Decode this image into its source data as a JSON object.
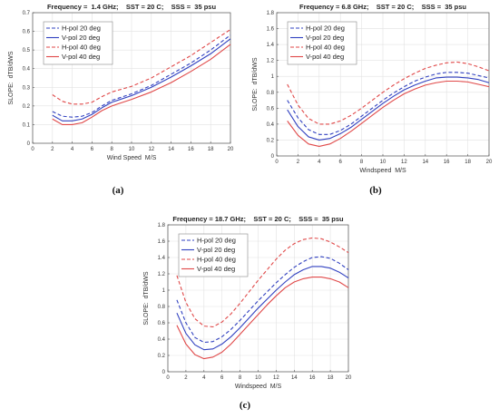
{
  "chart_data": [
    {
      "type": "line",
      "title": "Frequency =  1.4 GHz;    SST = 20 C;    SSS =  35 psu",
      "xlabel": "Wind Speed  M/S",
      "ylabel": "SLOPE:  dTB/dWS",
      "caption": "(a)",
      "xlim": [
        0,
        20
      ],
      "ylim": [
        0,
        0.7
      ],
      "xticks": [
        "0",
        "2",
        "4",
        "6",
        "8",
        "10",
        "12",
        "14",
        "16",
        "18",
        "20"
      ],
      "yticks": [
        "0",
        "0.1",
        "0.2",
        "0.3",
        "0.4",
        "0.5",
        "0.6",
        "0.7"
      ],
      "grid": true,
      "legend": "top-left",
      "x": [
        2,
        3,
        4,
        5,
        6,
        7,
        8,
        10,
        12,
        14,
        16,
        18,
        20
      ],
      "series": [
        {
          "name": "H-pol 20 deg",
          "color": "#3040c0",
          "dashed": true,
          "values": [
            0.17,
            0.145,
            0.14,
            0.145,
            0.165,
            0.2,
            0.23,
            0.265,
            0.31,
            0.37,
            0.43,
            0.5,
            0.58
          ]
        },
        {
          "name": "V-pol 20 deg",
          "color": "#3040c0",
          "dashed": false,
          "values": [
            0.15,
            0.12,
            0.12,
            0.13,
            0.155,
            0.19,
            0.22,
            0.255,
            0.3,
            0.355,
            0.415,
            0.48,
            0.56
          ]
        },
        {
          "name": "H-pol 40 deg",
          "color": "#e04848",
          "dashed": true,
          "values": [
            0.26,
            0.225,
            0.21,
            0.21,
            0.22,
            0.25,
            0.275,
            0.305,
            0.35,
            0.41,
            0.47,
            0.54,
            0.61
          ]
        },
        {
          "name": "V-pol 40 deg",
          "color": "#e04848",
          "dashed": false,
          "values": [
            0.13,
            0.1,
            0.1,
            0.11,
            0.14,
            0.175,
            0.2,
            0.235,
            0.275,
            0.325,
            0.385,
            0.45,
            0.53
          ]
        }
      ]
    },
    {
      "type": "line",
      "title": "Frequency = 6.8 GHz;    SST = 20 C;    SSS =  35 psu",
      "xlabel": "Windspeed  M/S",
      "ylabel": "SLOPE:  dTB/dWS",
      "caption": "(b)",
      "xlim": [
        0,
        20
      ],
      "ylim": [
        0,
        1.8
      ],
      "xticks": [
        "0",
        "2",
        "4",
        "6",
        "8",
        "10",
        "12",
        "14",
        "16",
        "18",
        "20"
      ],
      "yticks": [
        "0",
        "0.2",
        "0.4",
        "0.6",
        "0.8",
        "1",
        "1.2",
        "1.4",
        "1.6",
        "1.8"
      ],
      "grid": true,
      "legend": "top-left",
      "x": [
        1,
        2,
        3,
        4,
        5,
        6,
        7,
        8,
        9,
        10,
        11,
        12,
        13,
        14,
        15,
        16,
        17,
        18,
        19,
        20
      ],
      "series": [
        {
          "name": "H-pol 20 deg",
          "color": "#3040c0",
          "dashed": true,
          "values": [
            0.7,
            0.48,
            0.33,
            0.27,
            0.27,
            0.32,
            0.4,
            0.5,
            0.6,
            0.7,
            0.79,
            0.87,
            0.94,
            0.99,
            1.03,
            1.05,
            1.05,
            1.04,
            1.01,
            0.98
          ]
        },
        {
          "name": "V-pol 20 deg",
          "color": "#3040c0",
          "dashed": false,
          "values": [
            0.58,
            0.37,
            0.24,
            0.2,
            0.22,
            0.28,
            0.36,
            0.46,
            0.56,
            0.66,
            0.75,
            0.83,
            0.89,
            0.94,
            0.98,
            0.99,
            0.99,
            0.98,
            0.96,
            0.92
          ]
        },
        {
          "name": "H-pol 40 deg",
          "color": "#e04848",
          "dashed": true,
          "values": [
            0.9,
            0.64,
            0.47,
            0.4,
            0.4,
            0.44,
            0.51,
            0.6,
            0.7,
            0.8,
            0.89,
            0.97,
            1.04,
            1.1,
            1.14,
            1.17,
            1.18,
            1.16,
            1.12,
            1.07
          ]
        },
        {
          "name": "V-pol 40 deg",
          "color": "#e04848",
          "dashed": false,
          "values": [
            0.44,
            0.26,
            0.15,
            0.12,
            0.15,
            0.22,
            0.31,
            0.41,
            0.51,
            0.61,
            0.7,
            0.78,
            0.84,
            0.89,
            0.92,
            0.94,
            0.94,
            0.93,
            0.9,
            0.87
          ]
        }
      ]
    },
    {
      "type": "line",
      "title": "Frequency = 18.7 GHz;    SST = 20 C;    SSS =  35 psu",
      "xlabel": "Windspeed  M/S",
      "ylabel": "SLOPE:  dTB/dWS",
      "caption": "(c)",
      "xlim": [
        0,
        20
      ],
      "ylim": [
        0,
        1.8
      ],
      "xticks": [
        "0",
        "2",
        "4",
        "6",
        "8",
        "10",
        "12",
        "14",
        "16",
        "18",
        "20"
      ],
      "yticks": [
        "0",
        "0.2",
        "0.4",
        "0.6",
        "0.8",
        "1",
        "1.2",
        "1.4",
        "1.6",
        "1.8"
      ],
      "grid": true,
      "legend": "top-left",
      "x": [
        1,
        2,
        3,
        4,
        5,
        6,
        7,
        8,
        9,
        10,
        11,
        12,
        13,
        14,
        15,
        16,
        17,
        18,
        19,
        20
      ],
      "series": [
        {
          "name": "H-pol 20 deg",
          "color": "#3040c0",
          "dashed": true,
          "values": [
            0.88,
            0.6,
            0.42,
            0.36,
            0.37,
            0.43,
            0.52,
            0.63,
            0.75,
            0.87,
            0.98,
            1.09,
            1.19,
            1.28,
            1.35,
            1.4,
            1.41,
            1.39,
            1.33,
            1.25
          ]
        },
        {
          "name": "V-pol 20 deg",
          "color": "#3040c0",
          "dashed": false,
          "values": [
            0.72,
            0.47,
            0.33,
            0.27,
            0.28,
            0.34,
            0.43,
            0.54,
            0.66,
            0.78,
            0.89,
            1.0,
            1.1,
            1.19,
            1.25,
            1.29,
            1.29,
            1.27,
            1.22,
            1.15
          ]
        },
        {
          "name": "H-pol 40 deg",
          "color": "#e04848",
          "dashed": true,
          "values": [
            1.18,
            0.85,
            0.65,
            0.56,
            0.55,
            0.61,
            0.71,
            0.84,
            0.98,
            1.12,
            1.25,
            1.38,
            1.49,
            1.57,
            1.62,
            1.64,
            1.63,
            1.59,
            1.53,
            1.46
          ]
        },
        {
          "name": "V-pol 40 deg",
          "color": "#e04848",
          "dashed": false,
          "values": [
            0.57,
            0.34,
            0.21,
            0.16,
            0.18,
            0.24,
            0.34,
            0.46,
            0.58,
            0.7,
            0.82,
            0.93,
            1.03,
            1.1,
            1.14,
            1.16,
            1.16,
            1.14,
            1.1,
            1.03
          ]
        }
      ]
    }
  ]
}
